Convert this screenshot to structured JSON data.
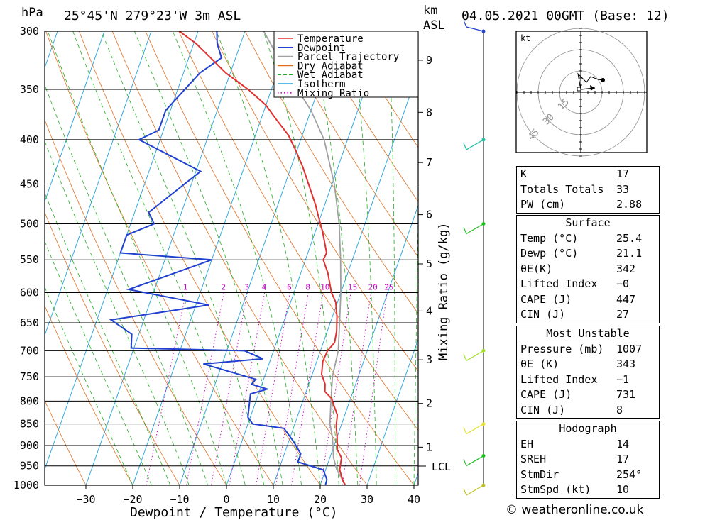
{
  "header": {
    "location": "25°45'N  279°23'W  3m  ASL",
    "datetime": "04.05.2021  00GMT  (Base: 12)",
    "pressure_unit": "hPa",
    "height_unit_line1": "km",
    "height_unit_line2": "ASL"
  },
  "chart_data": {
    "type": "line",
    "title": "",
    "xlabel": "Dewpoint / Temperature (°C)",
    "ylabel": "hPa",
    "y2label": "Mixing Ratio (g/kg)",
    "y_scale": "log",
    "xlim": [
      -40,
      40
    ],
    "ylim": [
      1000,
      300
    ],
    "x_ticks": [
      -30,
      -20,
      -10,
      0,
      10,
      20,
      30,
      40
    ],
    "x_tick_labels": [
      "−30",
      "−20",
      "−10",
      "0",
      "10",
      "20",
      "30",
      "40"
    ],
    "pressure_levels": [
      300,
      350,
      400,
      450,
      500,
      550,
      600,
      650,
      700,
      750,
      800,
      850,
      900,
      950,
      1000
    ],
    "height_ticks": [
      {
        "km": "1",
        "p": 904
      },
      {
        "km": "2",
        "p": 805
      },
      {
        "km": "3",
        "p": 717
      },
      {
        "km": "4",
        "p": 630
      },
      {
        "km": "5",
        "p": 556
      },
      {
        "km": "6",
        "p": 488
      },
      {
        "km": "7",
        "p": 425
      },
      {
        "km": "8",
        "p": 372
      },
      {
        "km": "9",
        "p": 324
      }
    ],
    "lcl": {
      "label": "LCL",
      "p": 960
    },
    "mixing_ratio_labels": [
      "1",
      "2",
      "3",
      "4",
      "6",
      "8",
      "10",
      "15",
      "20",
      "25"
    ],
    "series": [
      {
        "name": "Temperature",
        "color": "#e03030",
        "points": [
          [
            25.4,
            1000
          ],
          [
            24.6,
            990
          ],
          [
            23,
            960
          ],
          [
            22.5,
            930
          ],
          [
            21,
            910
          ],
          [
            20,
            880
          ],
          [
            19,
            855
          ],
          [
            18.4,
            830
          ],
          [
            17,
            810
          ],
          [
            16,
            795
          ],
          [
            14,
            780
          ],
          [
            13.5,
            765
          ],
          [
            12,
            745
          ],
          [
            11.3,
            720
          ],
          [
            11.5,
            700
          ],
          [
            12.4,
            685
          ],
          [
            12,
            665
          ],
          [
            11,
            640
          ],
          [
            9.6,
            615
          ],
          [
            8,
            600
          ],
          [
            5.8,
            570
          ],
          [
            3.8,
            550
          ],
          [
            4,
            540
          ],
          [
            1.5,
            510
          ],
          [
            -0.5,
            490
          ],
          [
            -2,
            475
          ],
          [
            -5,
            450
          ],
          [
            -7.5,
            430
          ],
          [
            -10.5,
            410
          ],
          [
            -13,
            395
          ],
          [
            -16.5,
            380
          ],
          [
            -20,
            365
          ],
          [
            -25,
            350
          ],
          [
            -31,
            335
          ],
          [
            -36,
            320
          ],
          [
            -39.5,
            310
          ],
          [
            -44,
            300
          ]
        ]
      },
      {
        "name": "Dewpoint",
        "color": "#2040d0",
        "points": [
          [
            21.1,
            1000
          ],
          [
            21,
            985
          ],
          [
            19.5,
            960
          ],
          [
            13.5,
            940
          ],
          [
            13.5,
            920
          ],
          [
            11,
            890
          ],
          [
            8,
            860
          ],
          [
            1,
            850
          ],
          [
            -0.5,
            835
          ],
          [
            -1.7,
            785
          ],
          [
            1.5,
            775
          ],
          [
            -2.2,
            765
          ],
          [
            -1.7,
            755
          ],
          [
            -14,
            725
          ],
          [
            -1.7,
            715
          ],
          [
            -6.2,
            700
          ],
          [
            -30.6,
            695
          ],
          [
            -31.5,
            670
          ],
          [
            -37,
            645
          ],
          [
            -17.3,
            620
          ],
          [
            -35.5,
            595
          ],
          [
            -20,
            550
          ],
          [
            -40,
            540
          ],
          [
            -40,
            515
          ],
          [
            -35,
            500
          ],
          [
            -37,
            485
          ],
          [
            -29,
            435
          ],
          [
            -44.5,
            400
          ],
          [
            -41,
            390
          ],
          [
            -41,
            370
          ],
          [
            -36.5,
            335
          ],
          [
            -33,
            322
          ],
          [
            -35,
            310
          ],
          [
            -36,
            300
          ]
        ]
      },
      {
        "name": "Parcel Trajectory",
        "color": "#a0a0a0",
        "points": [
          [
            25.4,
            1000
          ],
          [
            22.4,
            960
          ],
          [
            20.8,
            930
          ],
          [
            19,
            880
          ],
          [
            17.5,
            850
          ],
          [
            16,
            800
          ],
          [
            14.5,
            750
          ],
          [
            13.8,
            700
          ],
          [
            12,
            650
          ],
          [
            10,
            600
          ],
          [
            7.5,
            550
          ],
          [
            4.5,
            500
          ],
          [
            0.5,
            450
          ],
          [
            -5,
            400
          ],
          [
            -10,
            370
          ],
          [
            -18,
            335
          ],
          [
            -26,
            300
          ]
        ]
      }
    ],
    "legend": {
      "placement": "top-right of plot",
      "entries": [
        {
          "label": "Temperature",
          "color": "#e03030",
          "style": "solid"
        },
        {
          "label": "Dewpoint",
          "color": "#2040d0",
          "style": "solid"
        },
        {
          "label": "Parcel Trajectory",
          "color": "#a0a0a0",
          "style": "solid"
        },
        {
          "label": "Dry Adiabat",
          "color": "#e07020",
          "style": "solid"
        },
        {
          "label": "Wet Adiabat",
          "color": "#20b020",
          "style": "dashed"
        },
        {
          "label": "Isotherm",
          "color": "#20a0e0",
          "style": "solid"
        },
        {
          "label": "Mixing Ratio",
          "color": "#cc00cc",
          "style": "dotted"
        }
      ]
    },
    "wind_profile": [
      {
        "p": 300,
        "color": "#2040d0"
      },
      {
        "p": 400,
        "color": "#20c0a0"
      },
      {
        "p": 500,
        "color": "#20c020"
      },
      {
        "p": 700,
        "color": "#a0e020"
      },
      {
        "p": 850,
        "color": "#e0e020"
      },
      {
        "p": 925,
        "color": "#20c020"
      },
      {
        "p": 1000,
        "color": "#c0c020"
      }
    ]
  },
  "hodograph": {
    "unit": "kt",
    "ring_labels": [
      "15",
      "30",
      "45"
    ]
  },
  "indices": {
    "k": {
      "label": "K",
      "value": "17"
    },
    "totals": {
      "label": "Totals Totals",
      "value": "33"
    },
    "pw": {
      "label": "PW (cm)",
      "value": "2.88"
    },
    "surface": {
      "title": "Surface",
      "temp": {
        "label": "Temp (°C)",
        "value": "25.4"
      },
      "dewp": {
        "label": "Dewp (°C)",
        "value": "21.1"
      },
      "theta_e": {
        "label": "θE(K)",
        "value": "342"
      },
      "li": {
        "label": "Lifted Index",
        "value": "−0"
      },
      "cape": {
        "label": "CAPE (J)",
        "value": "447"
      },
      "cin": {
        "label": "CIN (J)",
        "value": "27"
      }
    },
    "most_unstable": {
      "title": "Most Unstable",
      "pressure": {
        "label": "Pressure (mb)",
        "value": "1007"
      },
      "theta_e": {
        "label": "θE (K)",
        "value": "343"
      },
      "li": {
        "label": "Lifted Index",
        "value": "−1"
      },
      "cape": {
        "label": "CAPE (J)",
        "value": "731"
      },
      "cin": {
        "label": "CIN (J)",
        "value": "8"
      }
    },
    "hodo": {
      "title": "Hodograph",
      "eh": {
        "label": "EH",
        "value": "14"
      },
      "sreh": {
        "label": "SREH",
        "value": "17"
      },
      "stmdir": {
        "label": "StmDir",
        "value": "254°"
      },
      "stmspd": {
        "label": "StmSpd (kt)",
        "value": "10"
      }
    }
  },
  "footer": "© weatheronline.co.uk"
}
